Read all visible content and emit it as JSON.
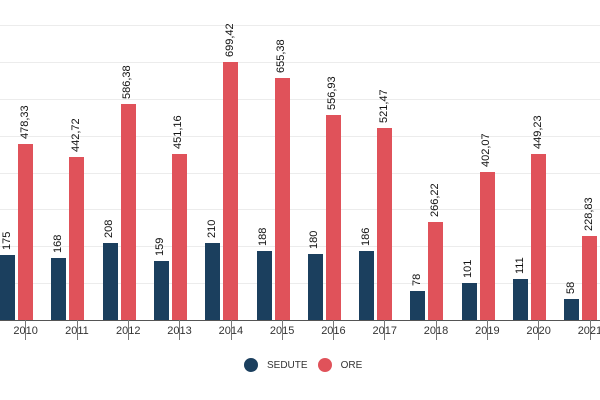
{
  "chart_data": {
    "type": "bar",
    "title": "",
    "xlabel": "",
    "ylabel": "",
    "categories": [
      "2010",
      "2011",
      "2012",
      "2013",
      "2014",
      "2015",
      "2016",
      "2017",
      "2018",
      "2019",
      "2020",
      "2021"
    ],
    "series": [
      {
        "name": "SEDUTE",
        "color": "#1b3f5e",
        "values": [
          175,
          168,
          208,
          159,
          210,
          188,
          180,
          186,
          78,
          101,
          111,
          58
        ],
        "labels": [
          "175",
          "168",
          "208",
          "159",
          "210",
          "188",
          "180",
          "186",
          "78",
          "101",
          "111",
          "58"
        ]
      },
      {
        "name": "ORE",
        "color": "#e0525a",
        "values": [
          478.33,
          442.72,
          586.38,
          451.16,
          699.42,
          655.38,
          556.93,
          521.47,
          266.22,
          402.07,
          449.23,
          228.83
        ],
        "labels": [
          "478,33",
          "442,72",
          "586,38",
          "451,16",
          "699,42",
          "655,38",
          "556,93",
          "521,47",
          "266,22",
          "402,07",
          "449,23",
          "228,83"
        ]
      }
    ],
    "ylim": [
      0,
      800
    ],
    "grid": true,
    "gridlines": [
      100,
      200,
      300,
      400,
      500,
      600,
      700,
      800
    ],
    "y_tick_labels_visible": false,
    "legend_position": "bottom-center"
  },
  "legend": {
    "items": [
      {
        "label": "SEDUTE",
        "color": "#1b3f5e"
      },
      {
        "label": "ORE",
        "color": "#e0525a"
      }
    ]
  }
}
